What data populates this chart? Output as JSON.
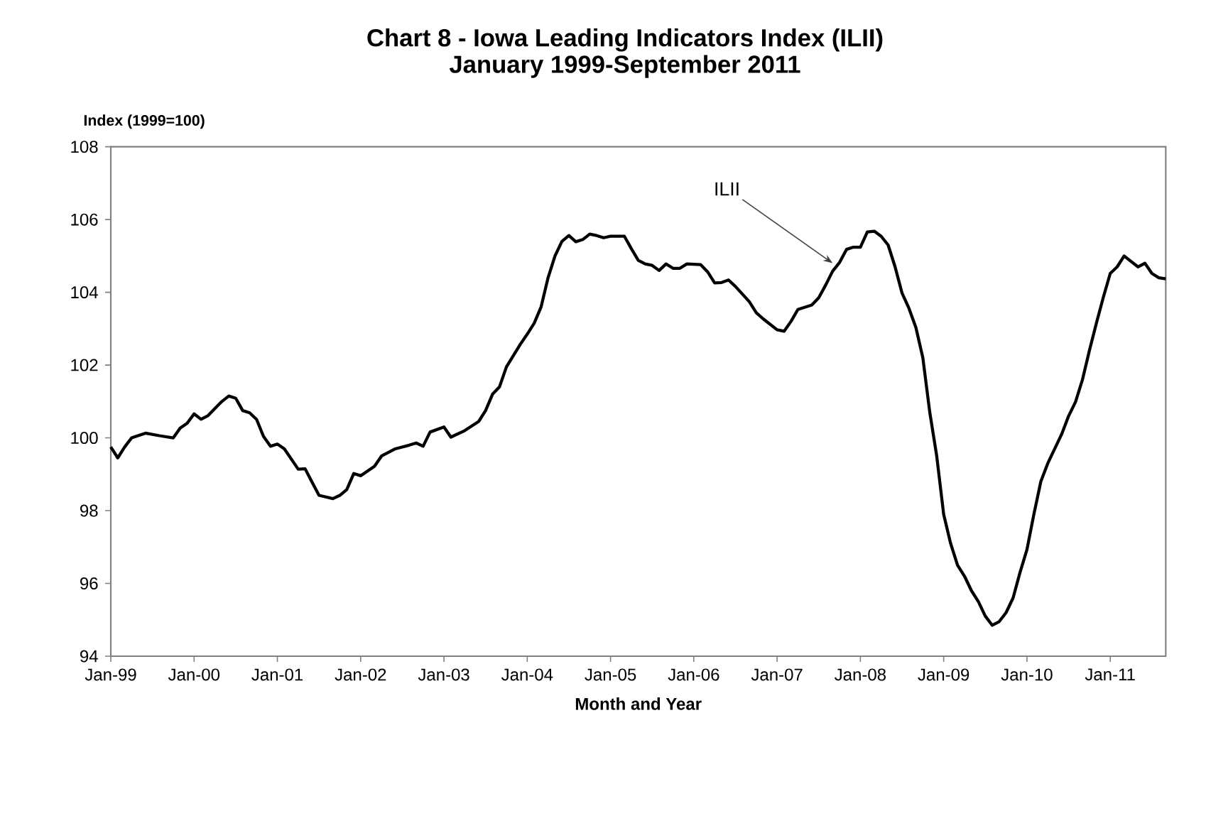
{
  "chart_data": {
    "type": "line",
    "title": "Chart 8  - Iowa Leading Indicators Index (ILII)",
    "subtitle": "January 1999-September 2011",
    "xlabel": "Month and Year",
    "ylabel": "Index (1999=100)",
    "x": [
      "1999-01",
      "1999-02",
      "1999-03",
      "1999-04",
      "1999-06",
      "1999-08",
      "1999-10",
      "1999-11",
      "1999-12",
      "2000-01",
      "2000-02",
      "2000-03",
      "2000-05",
      "2000-06",
      "2000-07",
      "2000-08",
      "2000-09",
      "2000-10",
      "2000-11",
      "2000-12",
      "2001-01",
      "2001-02",
      "2001-04",
      "2001-05",
      "2001-06",
      "2001-07",
      "2001-09",
      "2001-10",
      "2001-11",
      "2001-12",
      "2002-01",
      "2002-03",
      "2002-04",
      "2002-06",
      "2002-08",
      "2002-09",
      "2002-10",
      "2002-11",
      "2003-01",
      "2003-02",
      "2003-04",
      "2003-06",
      "2003-07",
      "2003-08",
      "2003-09",
      "2003-10",
      "2003-12",
      "2004-01",
      "2004-02",
      "2004-03",
      "2004-04",
      "2004-05",
      "2004-06",
      "2004-07",
      "2004-08",
      "2004-09",
      "2004-10",
      "2004-11",
      "2004-12",
      "2005-01",
      "2005-03",
      "2005-04",
      "2005-05",
      "2005-06",
      "2005-07",
      "2005-08",
      "2005-09",
      "2005-10",
      "2005-11",
      "2005-12",
      "2006-02",
      "2006-03",
      "2006-04",
      "2006-05",
      "2006-06",
      "2006-07",
      "2006-09",
      "2006-10",
      "2006-11",
      "2007-01",
      "2007-02",
      "2007-03",
      "2007-04",
      "2007-06",
      "2007-07",
      "2007-08",
      "2007-09",
      "2007-10",
      "2007-11",
      "2007-12",
      "2008-01",
      "2008-02",
      "2008-03",
      "2008-04",
      "2008-05",
      "2008-06",
      "2008-07",
      "2008-08",
      "2008-09",
      "2008-10",
      "2008-11",
      "2008-12",
      "2009-01",
      "2009-02",
      "2009-03",
      "2009-04",
      "2009-05",
      "2009-06",
      "2009-07",
      "2009-08",
      "2009-09",
      "2009-10",
      "2009-11",
      "2009-12",
      "2010-01",
      "2010-02",
      "2010-03",
      "2010-04",
      "2010-05",
      "2010-06",
      "2010-07",
      "2010-08",
      "2010-09",
      "2010-10",
      "2010-11",
      "2010-12",
      "2011-01",
      "2011-02",
      "2011-03",
      "2011-04",
      "2011-05",
      "2011-06",
      "2011-07",
      "2011-08",
      "2011-09"
    ],
    "series": [
      {
        "color": "#000000",
        "values": [
          99.75,
          99.45,
          99.75,
          100.0,
          100.13,
          100.06,
          100.0,
          100.27,
          100.4,
          100.66,
          100.51,
          100.61,
          101.0,
          101.15,
          101.09,
          100.75,
          100.69,
          100.51,
          100.04,
          99.77,
          99.83,
          99.7,
          99.14,
          99.15,
          98.78,
          98.42,
          98.33,
          98.42,
          98.58,
          99.02,
          98.96,
          99.22,
          99.5,
          99.7,
          99.8,
          99.86,
          99.77,
          100.16,
          100.3,
          100.02,
          100.2,
          100.45,
          100.75,
          101.2,
          101.4,
          101.95,
          102.57,
          102.85,
          103.15,
          103.6,
          104.4,
          105.0,
          105.4,
          105.56,
          105.39,
          105.45,
          105.6,
          105.56,
          105.5,
          105.54,
          105.54,
          105.2,
          104.88,
          104.78,
          104.74,
          104.6,
          104.78,
          104.66,
          104.66,
          104.78,
          104.76,
          104.56,
          104.26,
          104.27,
          104.34,
          104.16,
          103.74,
          103.44,
          103.27,
          102.97,
          102.93,
          103.2,
          103.53,
          103.65,
          103.85,
          104.2,
          104.58,
          104.82,
          105.18,
          105.24,
          105.24,
          105.66,
          105.68,
          105.54,
          105.3,
          104.7,
          103.98,
          103.56,
          103.03,
          102.2,
          100.7,
          99.5,
          97.9,
          97.1,
          96.5,
          96.2,
          95.8,
          95.5,
          95.1,
          94.85,
          94.95,
          95.2,
          95.6,
          96.3,
          96.93,
          97.9,
          98.8,
          99.3,
          99.7,
          100.1,
          100.6,
          100.99,
          101.6,
          102.4,
          103.15,
          103.86,
          104.52,
          104.7,
          105.0,
          104.85,
          104.7,
          104.8,
          104.52,
          104.4,
          104.37
        ]
      }
    ],
    "xlim": [
      "1999-01",
      "2011-09"
    ],
    "xticks": [
      {
        "value": "1999-01",
        "label": "Jan-99"
      },
      {
        "value": "2000-01",
        "label": "Jan-00"
      },
      {
        "value": "2001-01",
        "label": "Jan-01"
      },
      {
        "value": "2002-01",
        "label": "Jan-02"
      },
      {
        "value": "2003-01",
        "label": "Jan-03"
      },
      {
        "value": "2004-01",
        "label": "Jan-04"
      },
      {
        "value": "2005-01",
        "label": "Jan-05"
      },
      {
        "value": "2006-01",
        "label": "Jan-06"
      },
      {
        "value": "2007-01",
        "label": "Jan-07"
      },
      {
        "value": "2008-01",
        "label": "Jan-08"
      },
      {
        "value": "2009-01",
        "label": "Jan-09"
      },
      {
        "value": "2010-01",
        "label": "Jan-10"
      },
      {
        "value": "2011-01",
        "label": "Jan-11"
      }
    ],
    "ylim": [
      94,
      108
    ],
    "yticks": [
      94,
      96,
      98,
      100,
      102,
      104,
      106,
      108
    ],
    "annotations": [
      {
        "text": "ILII",
        "x": "2007-09",
        "y": 104.8
      }
    ],
    "grid": false,
    "legend": false
  }
}
